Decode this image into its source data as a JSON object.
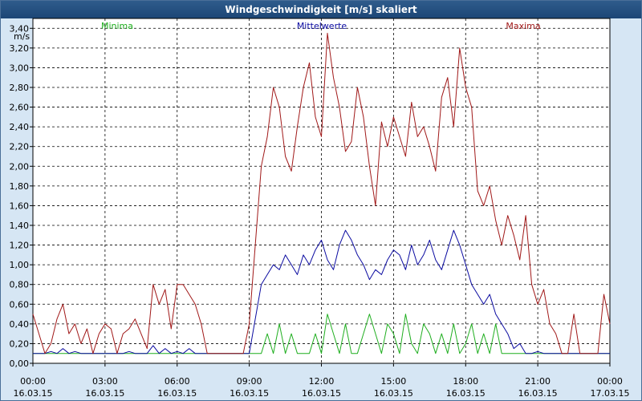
{
  "window": {
    "title": "Windgeschwindigkeit [m/s] skaliert"
  },
  "chart_data": {
    "type": "line",
    "title": "Windgeschwindigkeit [m/s] skaliert",
    "ylabel": "m/s",
    "ylim": [
      0,
      3.5
    ],
    "grid": true,
    "legend_position": "top",
    "y_ticks": [
      "0,00",
      "0,20",
      "0,40",
      "0,60",
      "0,80",
      "1,00",
      "1,20",
      "1,40",
      "1,60",
      "1,80",
      "2,00",
      "2,20",
      "2,40",
      "2,60",
      "2,80",
      "3,00",
      "3,20",
      "3,40"
    ],
    "x_ticks": [
      {
        "time": "00:00",
        "date": "16.03.15"
      },
      {
        "time": "03:00",
        "date": "16.03.15"
      },
      {
        "time": "06:00",
        "date": "16.03.15"
      },
      {
        "time": "09:00",
        "date": "16.03.15"
      },
      {
        "time": "12:00",
        "date": "16.03.15"
      },
      {
        "time": "15:00",
        "date": "16.03.15"
      },
      {
        "time": "18:00",
        "date": "16.03.15"
      },
      {
        "time": "21:00",
        "date": "16.03.15"
      },
      {
        "time": "00:00",
        "date": "17.03.15"
      }
    ],
    "x_hours": [
      0,
      0.25,
      0.5,
      0.75,
      1,
      1.25,
      1.5,
      1.75,
      2,
      2.25,
      2.5,
      2.75,
      3,
      3.25,
      3.5,
      3.75,
      4,
      4.25,
      4.5,
      4.75,
      5,
      5.25,
      5.5,
      5.75,
      6,
      6.25,
      6.5,
      6.75,
      7,
      7.25,
      7.5,
      7.75,
      8,
      8.25,
      8.5,
      8.75,
      9,
      9.25,
      9.5,
      9.75,
      10,
      10.25,
      10.5,
      10.75,
      11,
      11.25,
      11.5,
      11.75,
      12,
      12.25,
      12.5,
      12.75,
      13,
      13.25,
      13.5,
      13.75,
      14,
      14.25,
      14.5,
      14.75,
      15,
      15.25,
      15.5,
      15.75,
      16,
      16.25,
      16.5,
      16.75,
      17,
      17.25,
      17.5,
      17.75,
      18,
      18.25,
      18.5,
      18.75,
      19,
      19.25,
      19.5,
      19.75,
      20,
      20.25,
      20.5,
      20.75,
      21,
      21.25,
      21.5,
      21.75,
      22,
      22.25,
      22.5,
      22.75,
      23,
      23.25,
      23.5,
      23.75,
      24
    ],
    "series": [
      {
        "name": "Minima",
        "color": "#1fae1f",
        "values": [
          0.1,
          0.1,
          0.1,
          0.1,
          0.1,
          0.1,
          0.1,
          0.1,
          0.1,
          0.1,
          0.1,
          0.1,
          0.1,
          0.1,
          0.1,
          0.1,
          0.1,
          0.1,
          0.1,
          0.1,
          0.1,
          0.1,
          0.1,
          0.1,
          0.1,
          0.1,
          0.1,
          0.1,
          0.1,
          0.1,
          0.1,
          0.1,
          0.1,
          0.1,
          0.1,
          0.1,
          0.1,
          0.1,
          0.1,
          0.3,
          0.1,
          0.4,
          0.1,
          0.3,
          0.1,
          0.1,
          0.1,
          0.3,
          0.1,
          0.5,
          0.3,
          0.1,
          0.4,
          0.1,
          0.1,
          0.3,
          0.5,
          0.3,
          0.1,
          0.4,
          0.3,
          0.1,
          0.5,
          0.2,
          0.1,
          0.4,
          0.3,
          0.1,
          0.3,
          0.1,
          0.4,
          0.1,
          0.2,
          0.4,
          0.1,
          0.3,
          0.1,
          0.4,
          0.1,
          0.1,
          0.1,
          0.1,
          0.1,
          0.1,
          0.1,
          0.1,
          0.1,
          0.1,
          0.1,
          0.1,
          0.1,
          0.1,
          0.1,
          0.1,
          0.1,
          0.1,
          0.1
        ]
      },
      {
        "name": "Mittelwerte",
        "color": "#0a0aa0",
        "values": [
          0.1,
          0.1,
          0.1,
          0.12,
          0.1,
          0.15,
          0.1,
          0.12,
          0.1,
          0.1,
          0.1,
          0.1,
          0.1,
          0.1,
          0.1,
          0.1,
          0.12,
          0.1,
          0.1,
          0.1,
          0.18,
          0.1,
          0.15,
          0.1,
          0.12,
          0.1,
          0.15,
          0.1,
          0.1,
          0.1,
          0.1,
          0.1,
          0.1,
          0.1,
          0.1,
          0.1,
          0.1,
          0.45,
          0.8,
          0.9,
          1.0,
          0.95,
          1.1,
          1.0,
          0.9,
          1.1,
          1.0,
          1.15,
          1.25,
          1.05,
          0.95,
          1.2,
          1.35,
          1.25,
          1.1,
          1.0,
          0.85,
          0.95,
          0.9,
          1.05,
          1.15,
          1.1,
          0.95,
          1.2,
          1.0,
          1.1,
          1.25,
          1.05,
          0.95,
          1.15,
          1.35,
          1.2,
          1.0,
          0.8,
          0.7,
          0.6,
          0.7,
          0.5,
          0.4,
          0.3,
          0.15,
          0.2,
          0.1,
          0.1,
          0.12,
          0.1,
          0.1,
          0.1,
          0.1,
          0.1,
          0.1,
          0.1,
          0.1,
          0.1,
          0.1,
          0.1,
          0.1
        ]
      },
      {
        "name": "Maxima",
        "color": "#a01818",
        "values": [
          0.5,
          0.3,
          0.1,
          0.2,
          0.45,
          0.6,
          0.3,
          0.4,
          0.2,
          0.35,
          0.1,
          0.3,
          0.4,
          0.35,
          0.1,
          0.3,
          0.35,
          0.45,
          0.3,
          0.15,
          0.8,
          0.6,
          0.75,
          0.35,
          0.8,
          0.8,
          0.7,
          0.6,
          0.4,
          0.1,
          0.1,
          0.1,
          0.1,
          0.1,
          0.1,
          0.1,
          0.4,
          1.2,
          2.0,
          2.3,
          2.8,
          2.6,
          2.1,
          1.95,
          2.4,
          2.8,
          3.05,
          2.5,
          2.3,
          3.35,
          2.9,
          2.6,
          2.15,
          2.25,
          2.8,
          2.5,
          2.0,
          1.6,
          2.45,
          2.2,
          2.5,
          2.3,
          2.1,
          2.65,
          2.3,
          2.4,
          2.2,
          1.95,
          2.7,
          2.9,
          2.4,
          3.2,
          2.8,
          2.6,
          1.75,
          1.6,
          1.8,
          1.45,
          1.2,
          1.5,
          1.3,
          1.05,
          1.5,
          0.8,
          0.6,
          0.75,
          0.4,
          0.3,
          0.1,
          0.1,
          0.5,
          0.1,
          0.1,
          0.1,
          0.1,
          0.7,
          0.4
        ]
      }
    ]
  }
}
